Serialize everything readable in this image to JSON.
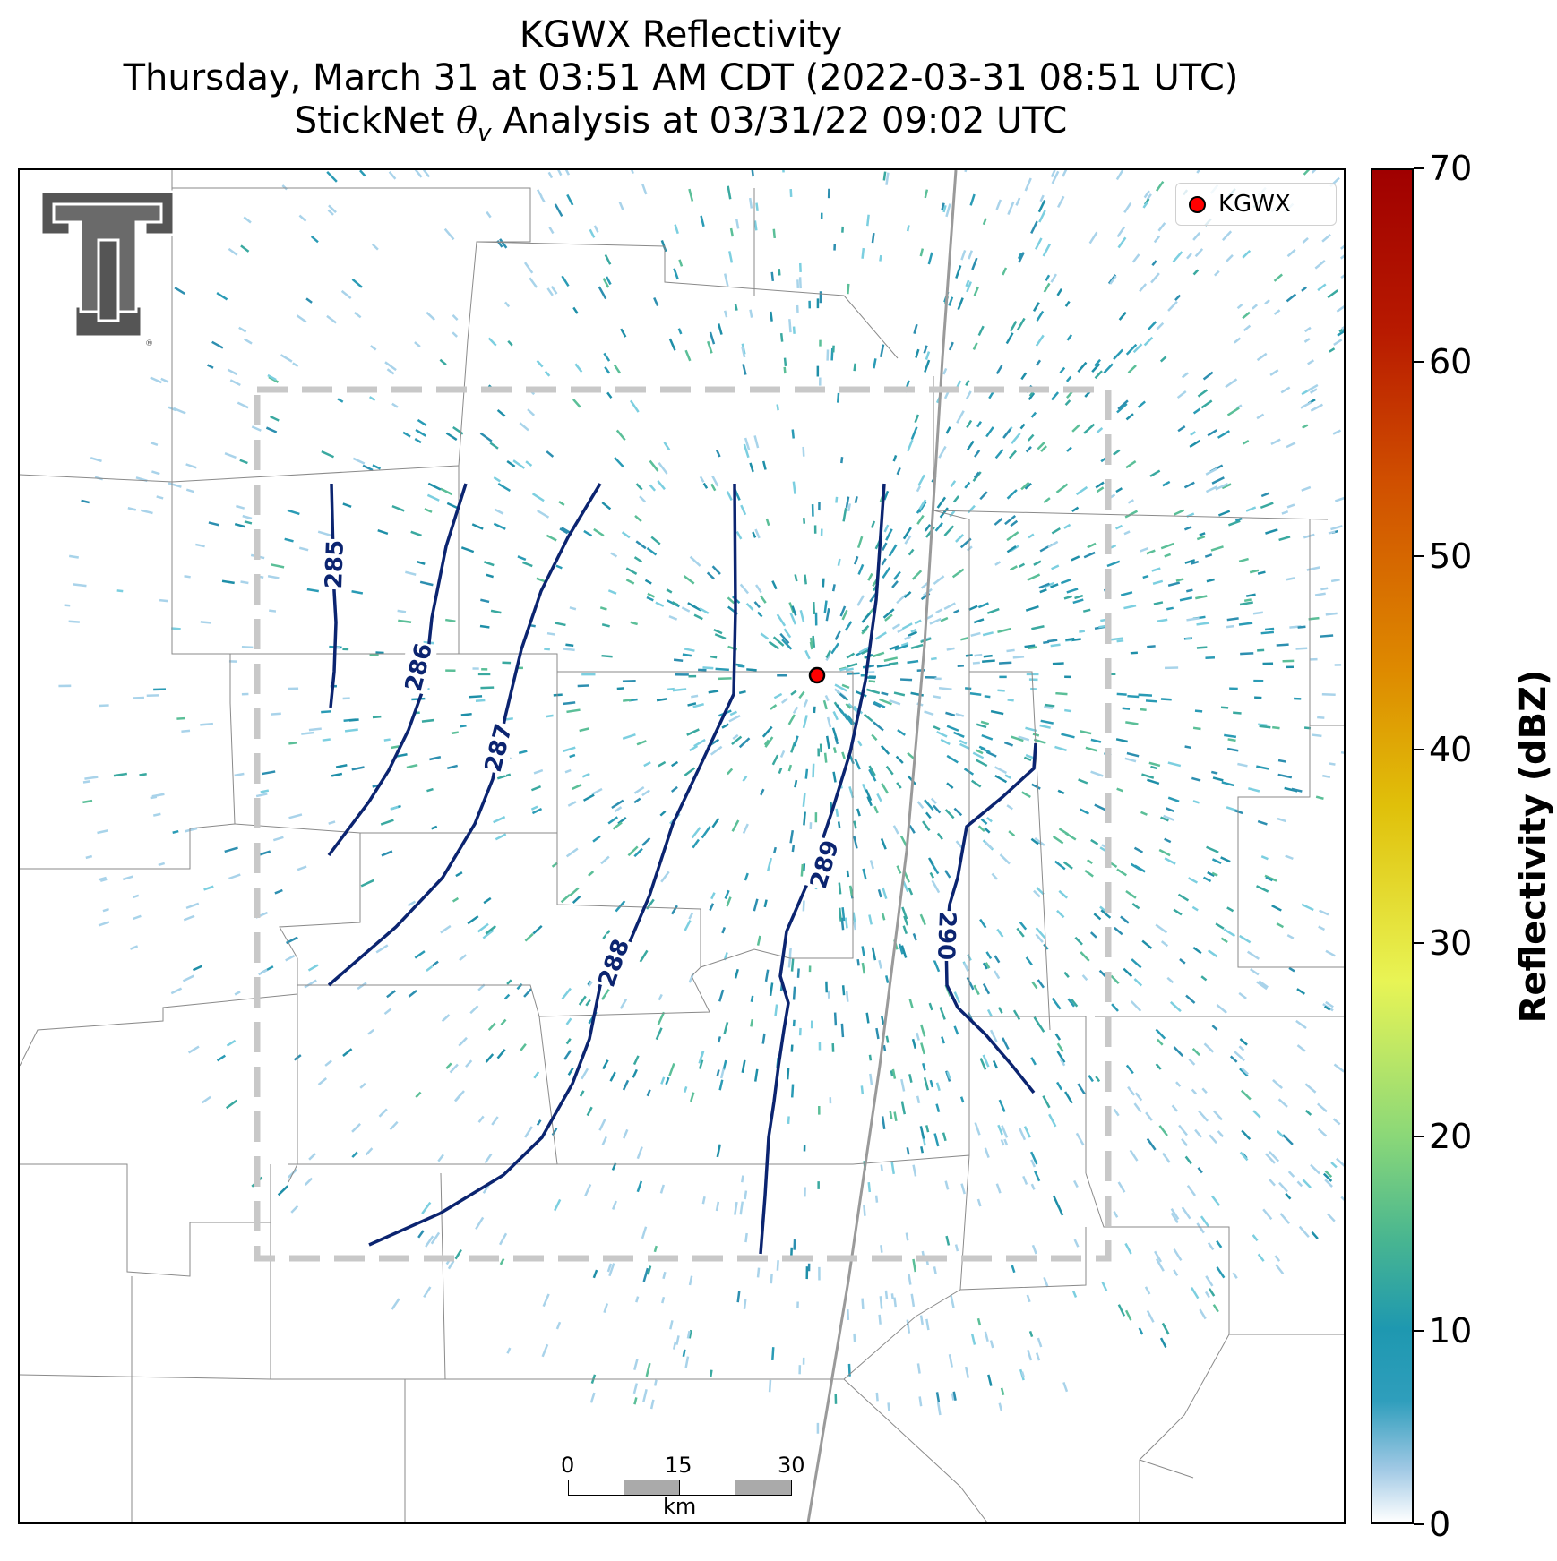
{
  "title": {
    "line1": "KGWX Reflectivity",
    "line2": "Thursday, March 31 at 03:51 AM CDT (2022-03-31 08:51 UTC)",
    "line3_prefix": "StickNet ",
    "line3_symbol": "θ",
    "line3_subscript": "v",
    "line3_suffix": " Analysis at 03/31/22 09:02 UTC"
  },
  "legend": {
    "label": "KGWX",
    "marker_color": "#ff0000"
  },
  "radar_site": {
    "name": "KGWX",
    "color": "#ff0000"
  },
  "contours": {
    "color": "#0b2470",
    "labels": [
      "285",
      "286",
      "287",
      "288",
      "289",
      "290"
    ]
  },
  "scale_bar": {
    "ticks": [
      "0",
      "15",
      "30"
    ],
    "unit": "km"
  },
  "colorbar": {
    "label": "Reflectivity (dBZ)",
    "min": 0,
    "max": 70,
    "ticks": [
      "0",
      "10",
      "20",
      "30",
      "40",
      "50",
      "60",
      "70"
    ]
  },
  "logo": {
    "name": "texas-tech-double-t-logo",
    "color": "#555555"
  },
  "domain_box": {
    "color": "#c8c8c8",
    "style": "dashed"
  }
}
